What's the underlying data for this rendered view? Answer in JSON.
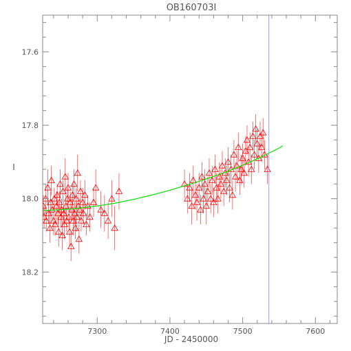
{
  "chart_data": {
    "type": "scatter",
    "title": "OB160703I",
    "xlabel": "JD - 2450000",
    "ylabel": "I",
    "xlim": [
      7225,
      7630
    ],
    "ylim": [
      18.34,
      17.5
    ],
    "y_inverted": true,
    "x_ticks": [
      7300,
      7400,
      7500,
      7600
    ],
    "y_ticks": [
      17.6,
      17.8,
      18.0,
      18.2
    ],
    "grid": false,
    "legend": "none",
    "colors": {
      "data": "#ff0000",
      "model": "#00e000",
      "marker_line": "#9999ff",
      "axes": "#888888"
    },
    "marker": "open-triangle",
    "vertical_marker_x": 7536,
    "model_curve": {
      "name": "",
      "x": [
        7225,
        7250,
        7275,
        7300,
        7325,
        7350,
        7375,
        7400,
        7425,
        7450,
        7475,
        7500,
        7525,
        7550,
        7555
      ],
      "y": [
        18.032,
        18.03,
        18.026,
        18.02,
        18.012,
        18.002,
        17.99,
        17.977,
        17.962,
        17.946,
        17.929,
        17.909,
        17.887,
        17.862,
        17.856
      ]
    },
    "series": [
      {
        "name": "",
        "points": [
          [
            7226,
            18.02,
            0.03
          ],
          [
            7227,
            18.05,
            0.03
          ],
          [
            7229,
            18.0,
            0.04
          ],
          [
            7230,
            18.06,
            0.03
          ],
          [
            7232,
            17.97,
            0.05
          ],
          [
            7233,
            18.04,
            0.03
          ],
          [
            7235,
            18.08,
            0.04
          ],
          [
            7236,
            18.01,
            0.03
          ],
          [
            7237,
            17.95,
            0.04
          ],
          [
            7238,
            18.03,
            0.03
          ],
          [
            7240,
            18.06,
            0.04
          ],
          [
            7241,
            18.0,
            0.03
          ],
          [
            7242,
            18.07,
            0.03
          ],
          [
            7244,
            18.02,
            0.04
          ],
          [
            7245,
            17.99,
            0.03
          ],
          [
            7246,
            18.04,
            0.03
          ],
          [
            7247,
            18.09,
            0.04
          ],
          [
            7248,
            18.01,
            0.03
          ],
          [
            7249,
            17.96,
            0.04
          ],
          [
            7250,
            18.05,
            0.03
          ],
          [
            7251,
            18.03,
            0.03
          ],
          [
            7252,
            18.1,
            0.04
          ],
          [
            7253,
            17.98,
            0.03
          ],
          [
            7254,
            18.04,
            0.03
          ],
          [
            7255,
            18.07,
            0.04
          ],
          [
            7256,
            17.94,
            0.05
          ],
          [
            7257,
            18.02,
            0.03
          ],
          [
            7258,
            18.06,
            0.03
          ],
          [
            7259,
            18.0,
            0.03
          ],
          [
            7260,
            17.97,
            0.04
          ],
          [
            7261,
            18.05,
            0.03
          ],
          [
            7262,
            18.09,
            0.04
          ],
          [
            7263,
            18.01,
            0.03
          ],
          [
            7264,
            18.13,
            0.04
          ],
          [
            7265,
            18.03,
            0.03
          ],
          [
            7266,
            17.99,
            0.03
          ],
          [
            7267,
            18.06,
            0.04
          ],
          [
            7268,
            17.96,
            0.04
          ],
          [
            7269,
            18.04,
            0.03
          ],
          [
            7270,
            18.08,
            0.03
          ],
          [
            7271,
            18.0,
            0.03
          ],
          [
            7272,
            18.05,
            0.04
          ],
          [
            7273,
            17.93,
            0.05
          ],
          [
            7274,
            18.02,
            0.03
          ],
          [
            7275,
            18.11,
            0.04
          ],
          [
            7276,
            18.03,
            0.03
          ],
          [
            7277,
            17.98,
            0.03
          ],
          [
            7278,
            18.06,
            0.03
          ],
          [
            7280,
            18.01,
            0.04
          ],
          [
            7281,
            18.04,
            0.03
          ],
          [
            7283,
            17.99,
            0.04
          ],
          [
            7285,
            18.07,
            0.03
          ],
          [
            7287,
            18.02,
            0.03
          ],
          [
            7290,
            18.05,
            0.04
          ],
          [
            7295,
            18.01,
            0.04
          ],
          [
            7298,
            17.97,
            0.05
          ],
          [
            7305,
            18.03,
            0.05
          ],
          [
            7310,
            18.04,
            0.05
          ],
          [
            7315,
            18.06,
            0.05
          ],
          [
            7320,
            18.0,
            0.05
          ],
          [
            7324,
            18.08,
            0.06
          ],
          [
            7330,
            17.98,
            0.05
          ],
          [
            7420,
            17.96,
            0.04
          ],
          [
            7424,
            18.0,
            0.04
          ],
          [
            7427,
            17.97,
            0.04
          ],
          [
            7430,
            18.02,
            0.05
          ],
          [
            7432,
            17.95,
            0.04
          ],
          [
            7435,
            17.99,
            0.04
          ],
          [
            7437,
            18.01,
            0.05
          ],
          [
            7440,
            17.97,
            0.04
          ],
          [
            7442,
            18.03,
            0.04
          ],
          [
            7444,
            17.94,
            0.04
          ],
          [
            7446,
            18.0,
            0.04
          ],
          [
            7448,
            17.96,
            0.04
          ],
          [
            7450,
            18.02,
            0.05
          ],
          [
            7452,
            17.98,
            0.04
          ],
          [
            7454,
            17.93,
            0.04
          ],
          [
            7456,
            18.0,
            0.04
          ],
          [
            7458,
            17.95,
            0.04
          ],
          [
            7460,
            18.01,
            0.04
          ],
          [
            7462,
            17.92,
            0.04
          ],
          [
            7464,
            17.97,
            0.04
          ],
          [
            7466,
            18.0,
            0.04
          ],
          [
            7468,
            17.94,
            0.04
          ],
          [
            7470,
            17.96,
            0.04
          ],
          [
            7472,
            17.91,
            0.04
          ],
          [
            7474,
            17.98,
            0.04
          ],
          [
            7476,
            17.93,
            0.04
          ],
          [
            7478,
            17.95,
            0.04
          ],
          [
            7480,
            17.9,
            0.04
          ],
          [
            7482,
            17.97,
            0.04
          ],
          [
            7484,
            17.92,
            0.04
          ],
          [
            7486,
            17.99,
            0.04
          ],
          [
            7488,
            17.88,
            0.04
          ],
          [
            7490,
            17.94,
            0.04
          ],
          [
            7492,
            17.91,
            0.04
          ],
          [
            7494,
            17.86,
            0.04
          ],
          [
            7496,
            17.95,
            0.04
          ],
          [
            7498,
            17.92,
            0.04
          ],
          [
            7500,
            17.89,
            0.04
          ],
          [
            7502,
            17.93,
            0.04
          ],
          [
            7504,
            17.87,
            0.04
          ],
          [
            7506,
            17.84,
            0.04
          ],
          [
            7508,
            17.9,
            0.04
          ],
          [
            7510,
            17.86,
            0.04
          ],
          [
            7512,
            17.92,
            0.04
          ],
          [
            7514,
            17.83,
            0.04
          ],
          [
            7516,
            17.88,
            0.04
          ],
          [
            7518,
            17.81,
            0.04
          ],
          [
            7520,
            17.85,
            0.04
          ],
          [
            7522,
            17.89,
            0.04
          ],
          [
            7524,
            17.83,
            0.04
          ],
          [
            7526,
            17.86,
            0.04
          ],
          [
            7528,
            17.82,
            0.04
          ],
          [
            7530,
            17.88,
            0.04
          ],
          [
            7534,
            17.92,
            0.04
          ]
        ]
      }
    ]
  }
}
